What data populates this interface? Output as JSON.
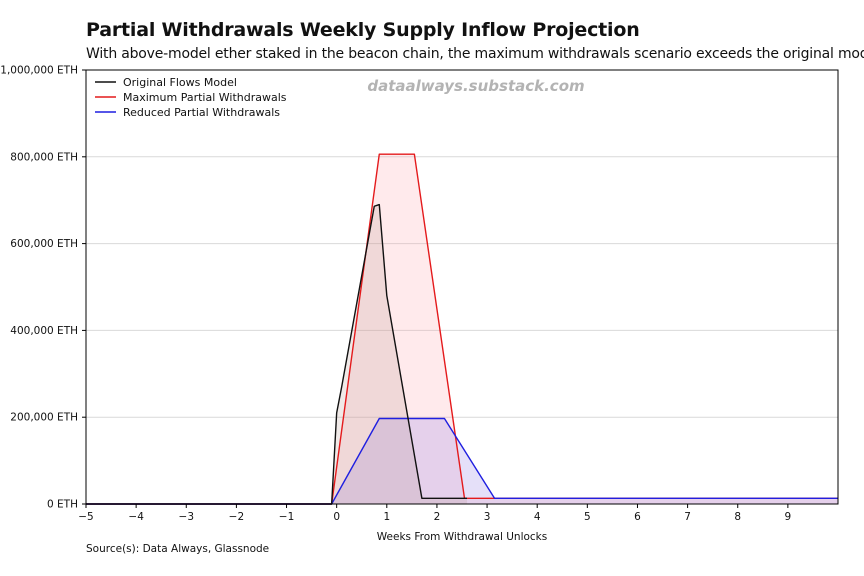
{
  "chart_data": {
    "type": "area",
    "title": "Partial Withdrawals Weekly Supply Inflow Projection",
    "subtitle": "With above-model ether staked in the beacon chain, the maximum withdrawals scenario exceeds the original model.",
    "watermark": "dataalways.substack.com",
    "source": "Source(s): Data Always, Glassnode",
    "xlabel": "Weeks From Withdrawal Unlocks",
    "ylabel": "",
    "xlim": [
      -5,
      10
    ],
    "ylim": [
      0,
      1000000
    ],
    "x_ticks": [
      -5,
      -4,
      -3,
      -2,
      -1,
      0,
      1,
      2,
      3,
      4,
      5,
      6,
      7,
      8,
      9
    ],
    "x_tick_labels": [
      "−5",
      "−4",
      "−3",
      "−2",
      "−1",
      "0",
      "1",
      "2",
      "3",
      "4",
      "5",
      "6",
      "7",
      "8",
      "9"
    ],
    "y_ticks": [
      0,
      200000,
      400000,
      600000,
      800000,
      1000000
    ],
    "y_tick_labels": [
      "0 ETH",
      "200,000 ETH",
      "400,000 ETH",
      "600,000 ETH",
      "800,000 ETH",
      "1,000,000 ETH"
    ],
    "grid": "horizontal",
    "legend_position": "top-left",
    "series": [
      {
        "name": "Maximum Partial Withdrawals",
        "color": "#e41a1c",
        "fill": "rgba(255,160,170,0.22)",
        "points": [
          [
            -5,
            0
          ],
          [
            -0.1,
            0
          ],
          [
            0.85,
            806000
          ],
          [
            1.55,
            806000
          ],
          [
            2.55,
            13000
          ],
          [
            10,
            13000
          ]
        ]
      },
      {
        "name": "Reduced Partial Withdrawals",
        "color": "#1f1fe0",
        "fill": "rgba(150,130,230,0.25)",
        "points": [
          [
            -5,
            0
          ],
          [
            -0.1,
            0
          ],
          [
            0.85,
            197000
          ],
          [
            2.15,
            197000
          ],
          [
            3.15,
            13000
          ],
          [
            10,
            13000
          ]
        ]
      },
      {
        "name": "Original Flows Model",
        "color": "#111111",
        "fill": "rgba(170,140,130,0.18)",
        "points": [
          [
            -5,
            0
          ],
          [
            -0.1,
            0
          ],
          [
            0,
            210000
          ],
          [
            0.1,
            270000
          ],
          [
            0.75,
            686000
          ],
          [
            0.85,
            690000
          ],
          [
            1,
            480000
          ],
          [
            1.7,
            13000
          ],
          [
            2.6,
            13000
          ]
        ]
      }
    ],
    "legend": [
      {
        "name": "Original Flows Model",
        "color": "#111111"
      },
      {
        "name": "Maximum Partial Withdrawals",
        "color": "#e41a1c"
      },
      {
        "name": "Reduced Partial Withdrawals",
        "color": "#1f1fe0"
      }
    ]
  }
}
